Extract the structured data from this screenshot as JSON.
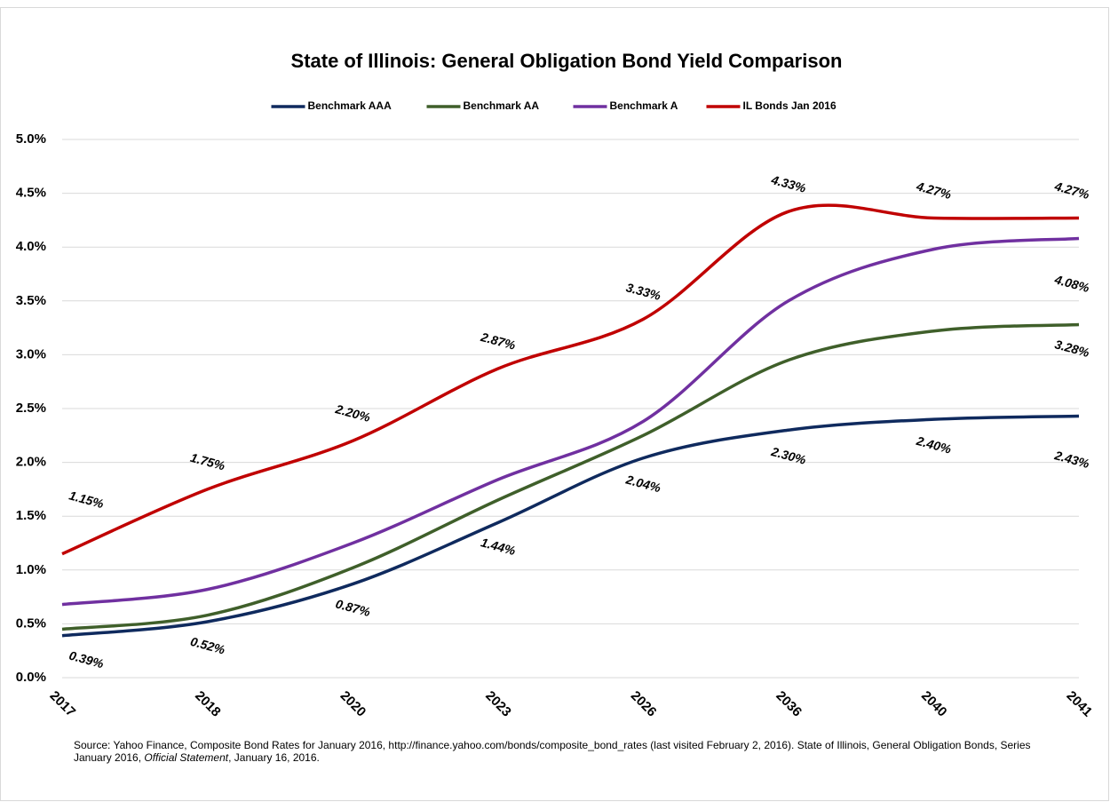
{
  "chart_data": {
    "type": "line",
    "title": "State of Illinois: General Obligation Bond Yield Comparison",
    "categories": [
      "2017",
      "2018",
      "2020",
      "2023",
      "2026",
      "2036",
      "2040",
      "2041"
    ],
    "series": [
      {
        "name": "Benchmark AAA",
        "color": "#0f2a5e",
        "values": [
          0.39,
          0.52,
          0.87,
          1.44,
          2.04,
          2.3,
          2.4,
          2.43
        ],
        "value_labels": [
          "0.39%",
          "0.52%",
          "0.87%",
          "1.44%",
          "2.04%",
          "2.30%",
          "2.40%",
          "2.43%"
        ]
      },
      {
        "name": "Benchmark AA",
        "color": "#3f5f2a",
        "values": [
          0.45,
          0.58,
          1.02,
          1.65,
          2.25,
          2.95,
          3.22,
          3.28
        ],
        "value_labels": [
          null,
          null,
          null,
          null,
          null,
          null,
          null,
          "3.28%"
        ]
      },
      {
        "name": "Benchmark A",
        "color": "#7030a0",
        "values": [
          0.68,
          0.82,
          1.25,
          1.84,
          2.38,
          3.5,
          3.98,
          4.08
        ],
        "value_labels": [
          null,
          null,
          null,
          null,
          null,
          null,
          null,
          "4.08%"
        ]
      },
      {
        "name": "IL Bonds Jan 2016",
        "color": "#c00000",
        "values": [
          1.15,
          1.75,
          2.2,
          2.87,
          3.33,
          4.33,
          4.27,
          4.27
        ],
        "value_labels": [
          "1.15%",
          "1.75%",
          "2.20%",
          "2.87%",
          "3.33%",
          "4.33%",
          "4.27%",
          "4.27%"
        ]
      }
    ],
    "ylim": [
      0,
      5
    ],
    "yticks": [
      {
        "value": 0,
        "label": "0.0%"
      },
      {
        "value": 0.5,
        "label": "0.5%"
      },
      {
        "value": 1,
        "label": "1.0%"
      },
      {
        "value": 1.5,
        "label": "1.5%"
      },
      {
        "value": 2,
        "label": "2.0%"
      },
      {
        "value": 2.5,
        "label": "2.5%"
      },
      {
        "value": 3,
        "label": "3.0%"
      },
      {
        "value": 3.5,
        "label": "3.5%"
      },
      {
        "value": 4,
        "label": "4.0%"
      },
      {
        "value": 4.5,
        "label": "4.5%"
      },
      {
        "value": 5,
        "label": "5.0%"
      }
    ],
    "grid": true,
    "legend": "top",
    "source": {
      "before": "Source: Yahoo Finance, Composite Bond Rates for January 2016, http://finance.yahoo.com/bonds/composite_bond_rates (last visited February 2, 2016). State of Illinois, General Obligation Bonds, Series January 2016, ",
      "italic": "Official Statement",
      "after": ", January 16, 2016."
    }
  }
}
